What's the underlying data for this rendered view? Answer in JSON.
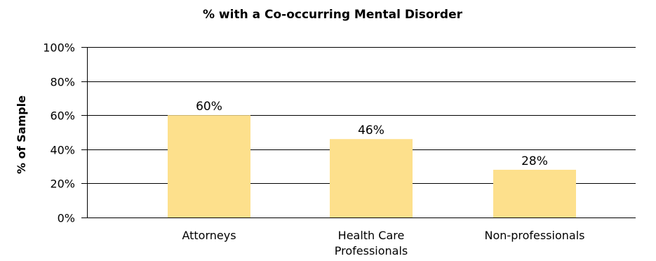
{
  "chart_data": {
    "type": "bar",
    "title": "% with a Co-occurring Mental Disorder",
    "xlabel": "",
    "ylabel": "% of Sample",
    "categories": [
      [
        "Attorneys"
      ],
      [
        "Health Care",
        "Professionals"
      ],
      [
        "Non-professionals"
      ]
    ],
    "values": [
      60,
      46,
      28
    ],
    "data_labels": [
      "60%",
      "46%",
      "28%"
    ],
    "ylim": [
      0,
      100
    ],
    "y_ticks": [
      0,
      20,
      40,
      60,
      80,
      100
    ],
    "y_tick_labels": [
      "0%",
      "20%",
      "40%",
      "60%",
      "80%",
      "100%"
    ],
    "grid": true,
    "legend": "none",
    "bar_color": "#fde08c",
    "grid_color": "#000000"
  }
}
